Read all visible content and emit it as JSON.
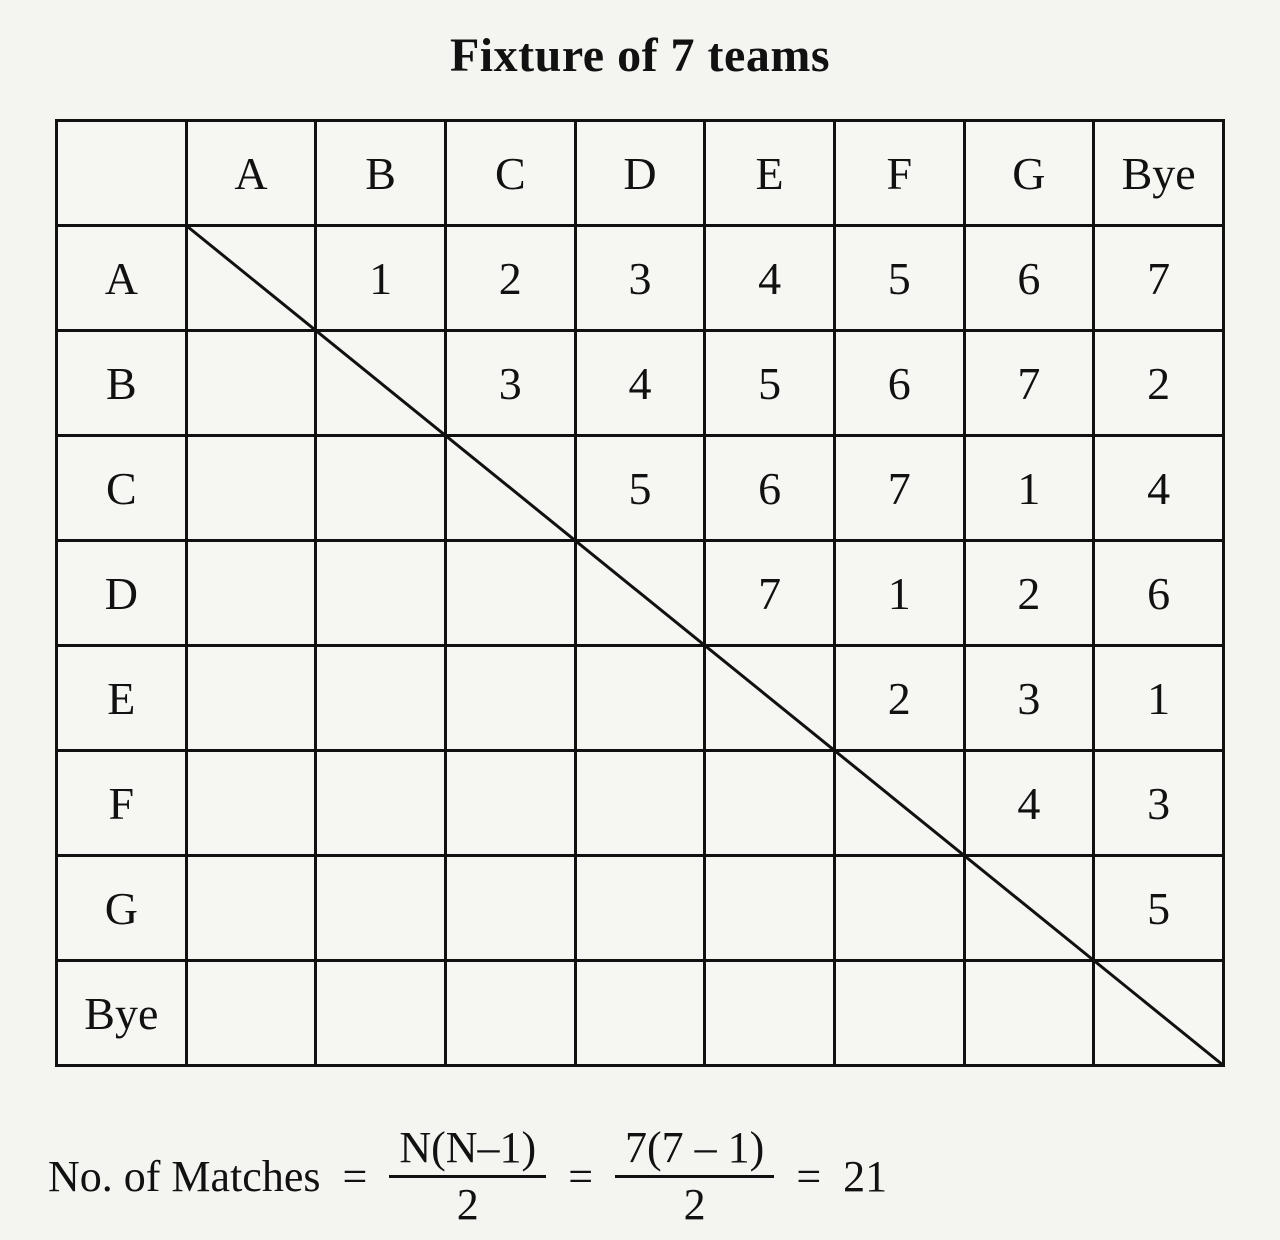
{
  "title": "Fixture of 7 teams",
  "table": {
    "headers": [
      "",
      "A",
      "B",
      "C",
      "D",
      "E",
      "F",
      "G",
      "Bye"
    ],
    "row_labels": [
      "A",
      "B",
      "C",
      "D",
      "E",
      "F",
      "G",
      "Bye"
    ],
    "cells": [
      [
        "",
        "1",
        "2",
        "3",
        "4",
        "5",
        "6",
        "7"
      ],
      [
        "",
        "",
        "3",
        "4",
        "5",
        "6",
        "7",
        "2"
      ],
      [
        "",
        "",
        "",
        "5",
        "6",
        "7",
        "1",
        "4"
      ],
      [
        "",
        "",
        "",
        "",
        "7",
        "1",
        "2",
        "6"
      ],
      [
        "",
        "",
        "",
        "",
        "",
        "2",
        "3",
        "1"
      ],
      [
        "",
        "",
        "",
        "",
        "",
        "",
        "4",
        "3"
      ],
      [
        "",
        "",
        "",
        "",
        "",
        "",
        "",
        "5"
      ],
      [
        "",
        "",
        "",
        "",
        "",
        "",
        "",
        ""
      ]
    ],
    "border_color": "#111111",
    "background_color": "#f6f6f3",
    "cell_fontsize": 46,
    "diagonal_line_color": "#111111",
    "diagonal_line_width": 3
  },
  "formula": {
    "label": "No. of Matches",
    "eq": "=",
    "frac1_num": "N(N–1)",
    "frac1_den": "2",
    "frac2_num": "7(7 – 1)",
    "frac2_den": "2",
    "result": "21"
  },
  "colors": {
    "page_bg": "#f4f4f1",
    "text": "#111111"
  },
  "title_fontsize": 48,
  "formula_fontsize": 44
}
